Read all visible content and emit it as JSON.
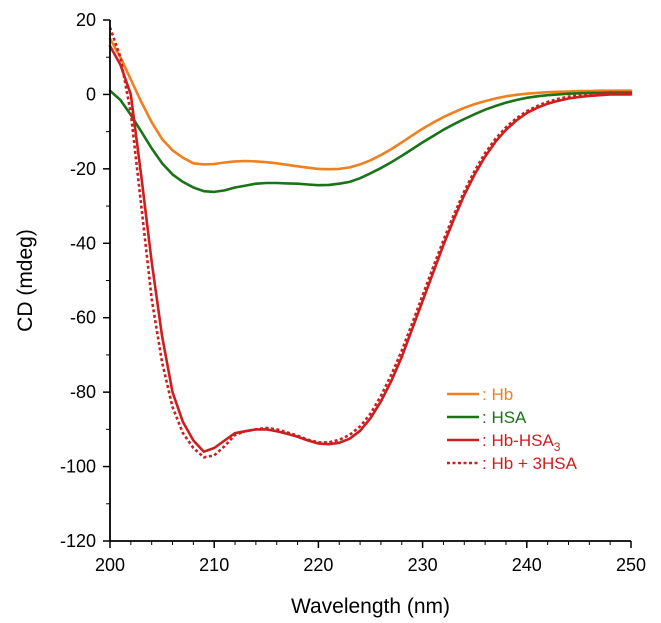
{
  "chart_data": {
    "type": "line",
    "title": "",
    "xlabel": "Wavelength (nm)",
    "ylabel": "CD (mdeg)",
    "xlim": [
      200,
      250
    ],
    "ylim": [
      -120,
      20
    ],
    "xticks": [
      200,
      210,
      220,
      230,
      240,
      250
    ],
    "yticks": [
      20,
      0,
      -20,
      -40,
      -60,
      -80,
      -100,
      -120
    ],
    "grid": false,
    "legend_position": "bottom-right",
    "series": [
      {
        "name": ": Hb",
        "color": "#f07f1e",
        "style": "solid",
        "x": [
          200,
          201,
          202,
          203,
          204,
          205,
          206,
          207,
          208,
          209,
          210,
          211,
          212,
          213,
          214,
          215,
          216,
          217,
          218,
          219,
          220,
          221,
          222,
          223,
          224,
          225,
          226,
          227,
          228,
          229,
          230,
          231,
          232,
          233,
          234,
          235,
          236,
          237,
          238,
          239,
          240,
          241,
          242,
          243,
          244,
          245,
          246,
          247,
          248,
          249,
          250
        ],
        "y": [
          15,
          10,
          4,
          -2,
          -7.5,
          -12,
          -15,
          -17,
          -18.5,
          -18.8,
          -18.7,
          -18.3,
          -18,
          -17.9,
          -18,
          -18.2,
          -18.5,
          -18.9,
          -19.3,
          -19.7,
          -20,
          -20.1,
          -20,
          -19.6,
          -18.8,
          -17.7,
          -16.3,
          -14.7,
          -12.9,
          -11,
          -9.2,
          -7.6,
          -6.1,
          -4.8,
          -3.6,
          -2.6,
          -1.8,
          -1.1,
          -0.5,
          -0.1,
          0.2,
          0.4,
          0.6,
          0.7,
          0.8,
          0.9,
          0.9,
          1,
          1,
          1,
          1
        ]
      },
      {
        "name": ": HSA",
        "color": "#1a7316",
        "style": "solid",
        "x": [
          200,
          201,
          202,
          203,
          204,
          205,
          206,
          207,
          208,
          209,
          210,
          211,
          212,
          213,
          214,
          215,
          216,
          217,
          218,
          219,
          220,
          221,
          222,
          223,
          224,
          225,
          226,
          227,
          228,
          229,
          230,
          231,
          232,
          233,
          234,
          235,
          236,
          237,
          238,
          239,
          240,
          241,
          242,
          243,
          244,
          245,
          246,
          247,
          248,
          249,
          250
        ],
        "y": [
          1,
          -1.5,
          -5.5,
          -10,
          -14.5,
          -18.5,
          -21.5,
          -23.5,
          -25,
          -26,
          -26.2,
          -25.8,
          -25,
          -24.5,
          -24,
          -23.8,
          -23.8,
          -23.9,
          -24,
          -24.2,
          -24.4,
          -24.3,
          -24,
          -23.5,
          -22.5,
          -21.2,
          -19.8,
          -18.2,
          -16.5,
          -14.7,
          -12.9,
          -11.2,
          -9.5,
          -8,
          -6.6,
          -5.3,
          -4.1,
          -3.1,
          -2.2,
          -1.5,
          -0.9,
          -0.5,
          -0.2,
          0,
          0.2,
          0.3,
          0.4,
          0.4,
          0.5,
          0.5,
          0.5
        ]
      },
      {
        "name": ": Hb-HSA3",
        "color": "#cc1f1f",
        "style": "solid",
        "x": [
          200,
          201,
          202,
          203,
          204,
          205,
          206,
          207,
          208,
          209,
          210,
          211,
          212,
          213,
          214,
          215,
          216,
          217,
          218,
          219,
          220,
          221,
          222,
          223,
          224,
          225,
          226,
          227,
          228,
          229,
          230,
          231,
          232,
          233,
          234,
          235,
          236,
          237,
          238,
          239,
          240,
          241,
          242,
          243,
          244,
          245,
          246,
          247,
          248,
          249,
          250
        ],
        "y": [
          13,
          8,
          0,
          -22,
          -45,
          -65,
          -80,
          -88,
          -93,
          -96,
          -95,
          -93,
          -91,
          -90.5,
          -90,
          -90,
          -90.5,
          -91.2,
          -92,
          -93,
          -93.8,
          -94,
          -93.6,
          -92.5,
          -90.4,
          -87,
          -82.5,
          -77,
          -70.5,
          -63,
          -55.5,
          -48,
          -40.5,
          -33.5,
          -27,
          -21.5,
          -16.7,
          -12.7,
          -9.5,
          -7,
          -5,
          -3.6,
          -2.5,
          -1.7,
          -1.1,
          -0.7,
          -0.4,
          -0.2,
          0,
          0,
          0
        ]
      },
      {
        "name": ": Hb + 3HSA",
        "color": "#cc1f1f",
        "style": "dotted",
        "x": [
          200,
          201,
          202,
          203,
          204,
          205,
          206,
          207,
          208,
          209,
          210,
          211,
          212,
          213,
          214,
          215,
          216,
          217,
          218,
          219,
          220,
          221,
          222,
          223,
          224,
          225,
          226,
          227,
          228,
          229,
          230,
          231,
          232,
          233,
          234,
          235,
          236,
          237,
          238,
          239,
          240,
          241,
          242,
          243,
          244,
          245,
          246,
          247,
          248,
          249,
          250
        ],
        "y": [
          18,
          10,
          -5,
          -30,
          -55,
          -72,
          -84,
          -91,
          -95,
          -97.5,
          -97,
          -94.5,
          -91.5,
          -90.5,
          -90,
          -89.6,
          -90,
          -90.8,
          -91.7,
          -92.8,
          -93.5,
          -93.5,
          -92.8,
          -91.5,
          -89.2,
          -85.8,
          -81,
          -75.3,
          -68.8,
          -61.5,
          -54,
          -46.5,
          -39.2,
          -32.3,
          -26,
          -20.5,
          -15.8,
          -11.9,
          -8.8,
          -6.4,
          -4.5,
          -3.1,
          -2,
          -1.2,
          -0.6,
          -0.2,
          0,
          0.2,
          0.3,
          0.3,
          0.3
        ]
      }
    ],
    "legend": [
      {
        "prefix": ": Hb",
        "sub": ""
      },
      {
        "prefix": ": HSA",
        "sub": ""
      },
      {
        "prefix": ": Hb-HSA",
        "sub": "3"
      },
      {
        "prefix": ": Hb + 3HSA",
        "sub": ""
      }
    ]
  }
}
